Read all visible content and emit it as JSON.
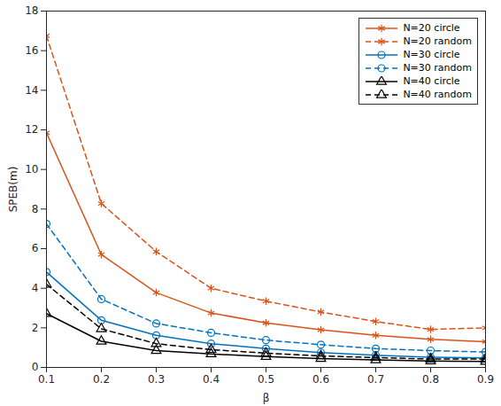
{
  "chart_data": {
    "type": "line",
    "x_label": "β",
    "y_label": "SPEB(m)",
    "x": [
      0.1,
      0.2,
      0.3,
      0.4,
      0.5,
      0.6,
      0.7,
      0.8,
      0.9
    ],
    "xlim": [
      0.1,
      0.9
    ],
    "xticks": [
      0.1,
      0.2,
      0.3,
      0.4,
      0.5,
      0.6,
      0.7,
      0.8,
      0.9
    ],
    "ylim": [
      0,
      18
    ],
    "yticks": [
      0,
      2,
      4,
      6,
      8,
      10,
      12,
      14,
      16,
      18
    ],
    "grid": false,
    "legend": "top-right",
    "series": [
      {
        "name": "N=20 circle",
        "color": "#d95319",
        "marker": "asterisk",
        "line_style": "solid",
        "values": [
          11.85,
          5.7,
          3.78,
          2.75,
          2.25,
          1.9,
          1.62,
          1.42,
          1.3
        ]
      },
      {
        "name": "N=20 random",
        "color": "#d95319",
        "marker": "asterisk",
        "line_style": "dashed",
        "values": [
          16.75,
          8.28,
          5.85,
          4.0,
          3.35,
          2.8,
          2.32,
          1.92,
          2.0
        ]
      },
      {
        "name": "N=30 circle",
        "color": "#0072bd",
        "marker": "circle",
        "line_style": "solid",
        "values": [
          4.82,
          2.38,
          1.62,
          1.2,
          0.95,
          0.75,
          0.62,
          0.52,
          0.48
        ]
      },
      {
        "name": "N=30 random",
        "color": "#0072bd",
        "marker": "circle",
        "line_style": "dashed",
        "values": [
          7.25,
          3.45,
          2.22,
          1.75,
          1.38,
          1.15,
          0.95,
          0.85,
          0.78
        ]
      },
      {
        "name": "N=40 circle",
        "color": "#000000",
        "marker": "triangle",
        "line_style": "solid",
        "values": [
          2.72,
          1.32,
          0.85,
          0.68,
          0.55,
          0.45,
          0.38,
          0.32,
          0.3
        ]
      },
      {
        "name": "N=40 random",
        "color": "#000000",
        "marker": "triangle",
        "line_style": "dashed",
        "values": [
          4.2,
          1.95,
          1.2,
          0.9,
          0.72,
          0.58,
          0.5,
          0.42,
          0.42
        ]
      }
    ]
  }
}
